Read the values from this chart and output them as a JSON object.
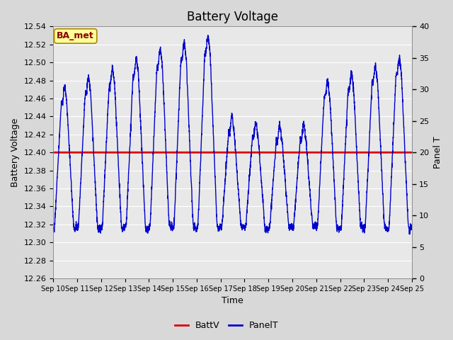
{
  "title": "Battery Voltage",
  "xlabel": "Time",
  "ylabel_left": "Battery Voltage",
  "ylabel_right": "Panel T",
  "ylim_left": [
    12.26,
    12.54
  ],
  "ylim_right": [
    0,
    40
  ],
  "yticks_left": [
    12.26,
    12.28,
    12.3,
    12.32,
    12.34,
    12.36,
    12.38,
    12.4,
    12.42,
    12.44,
    12.46,
    12.48,
    12.5,
    12.52,
    12.54
  ],
  "yticks_right": [
    0,
    5,
    10,
    15,
    20,
    25,
    30,
    35,
    40
  ],
  "n_days": 15,
  "batt_voltage": 12.4,
  "batt_color": "#dd0000",
  "panel_color": "#0000cc",
  "bg_color": "#d8d8d8",
  "plot_bg_color": "#e8e8e8",
  "legend_batt": "BattV",
  "legend_panel": "PanelT",
  "annotation_text": "BA_met",
  "annotation_bg": "#ffff99",
  "annotation_border": "#aa8800",
  "annotation_text_color": "#880000",
  "grid_color": "#ffffff",
  "title_fontsize": 12,
  "label_fontsize": 9,
  "tick_fontsize": 8
}
